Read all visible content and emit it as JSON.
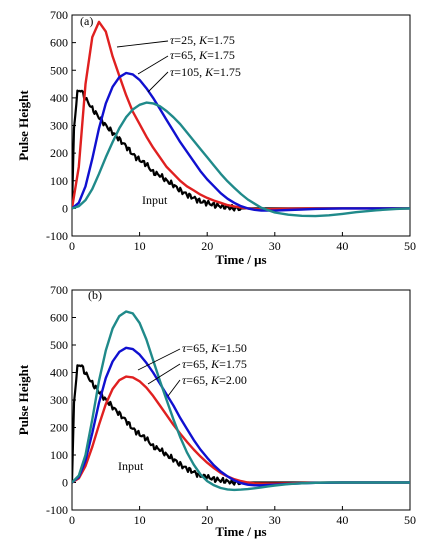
{
  "chart_data": [
    {
      "panel": "(a)",
      "type": "line",
      "xlabel": "Time / μs",
      "ylabel": "Pulse Height",
      "xlim": [
        0,
        50
      ],
      "ylim": [
        -100,
        700
      ],
      "xticks": [
        0,
        10,
        20,
        30,
        40,
        50
      ],
      "yticks": [
        -100,
        0,
        100,
        200,
        300,
        400,
        500,
        600,
        700
      ],
      "grid": false,
      "legend": "none (curves labeled by annotations)",
      "annotations": [
        {
          "tau": "τ",
          "tau_value": "=25, ",
          "k": "K",
          "k_value": "=1.75",
          "series": 1
        },
        {
          "tau": "τ",
          "tau_value": "=65, ",
          "k": "K",
          "k_value": "=1.75",
          "series": 2
        },
        {
          "tau": "τ",
          "tau_value": "=105, ",
          "k": "K",
          "k_value": "=1.75",
          "series": 3
        },
        {
          "text": "Input",
          "series": 0
        }
      ],
      "series": [
        {
          "name": "Input",
          "color": "#000000",
          "style": "noisy",
          "x": [
            0,
            0.3,
            0.8,
            1.3,
            1.8,
            2.5,
            3,
            4,
            5,
            6,
            7,
            8,
            9,
            10,
            11,
            12,
            13,
            14,
            15,
            16,
            17,
            18,
            19,
            20,
            21,
            22,
            23,
            24,
            25,
            27,
            30,
            35,
            40,
            45,
            50
          ],
          "y": [
            0,
            290,
            420,
            430,
            405,
            380,
            360,
            330,
            300,
            275,
            250,
            225,
            195,
            175,
            160,
            130,
            120,
            100,
            85,
            65,
            50,
            38,
            25,
            20,
            12,
            8,
            4,
            0,
            0,
            0,
            0,
            0,
            0,
            0,
            0
          ]
        },
        {
          "name": "τ=25, K=1.75",
          "color": "#e02020",
          "style": "smooth",
          "x": [
            0,
            1,
            2,
            3,
            4,
            5,
            6,
            7,
            8,
            9,
            10,
            11,
            12,
            13,
            14,
            15,
            16,
            17,
            18,
            19,
            20,
            21,
            22,
            23,
            24,
            25,
            26,
            27,
            28,
            30,
            32,
            35,
            40,
            45,
            50
          ],
          "y": [
            0,
            150,
            450,
            620,
            675,
            640,
            550,
            480,
            410,
            350,
            305,
            260,
            220,
            185,
            150,
            125,
            100,
            80,
            65,
            50,
            38,
            28,
            20,
            12,
            7,
            3,
            0,
            -2,
            -3,
            -2,
            -1,
            0,
            0,
            0,
            0
          ]
        },
        {
          "name": "τ=65, K=1.75",
          "color": "#1010d0",
          "style": "smooth",
          "x": [
            0,
            1,
            2,
            3,
            4,
            5,
            6,
            7,
            8,
            9,
            10,
            11,
            12,
            13,
            14,
            15,
            16,
            17,
            18,
            19,
            20,
            21,
            22,
            23,
            24,
            25,
            26,
            27,
            28,
            29,
            30,
            32,
            34,
            36,
            38,
            40,
            45,
            50
          ],
          "y": [
            0,
            20,
            80,
            180,
            290,
            380,
            440,
            475,
            490,
            485,
            465,
            435,
            400,
            360,
            320,
            280,
            240,
            205,
            170,
            135,
            105,
            80,
            55,
            35,
            20,
            8,
            0,
            -5,
            -8,
            -8,
            -8,
            -6,
            -4,
            -2,
            -1,
            0,
            0,
            0
          ]
        },
        {
          "name": "τ=105, K=1.75",
          "color": "#208a8a",
          "style": "smooth",
          "x": [
            0,
            1,
            2,
            3,
            4,
            5,
            6,
            7,
            8,
            9,
            10,
            11,
            12,
            13,
            14,
            15,
            16,
            17,
            18,
            19,
            20,
            21,
            22,
            23,
            24,
            25,
            26,
            28,
            30,
            32,
            34,
            36,
            38,
            40,
            42,
            45,
            48,
            50
          ],
          "y": [
            0,
            8,
            30,
            70,
            125,
            185,
            240,
            290,
            330,
            358,
            375,
            383,
            380,
            370,
            352,
            330,
            305,
            275,
            245,
            215,
            185,
            155,
            125,
            98,
            75,
            52,
            32,
            2,
            -15,
            -23,
            -27,
            -28,
            -25,
            -20,
            -14,
            -7,
            -2,
            0
          ]
        }
      ]
    },
    {
      "panel": "(b)",
      "type": "line",
      "xlabel": "Time / μs",
      "ylabel": "Pulse Height",
      "xlim": [
        0,
        50
      ],
      "ylim": [
        -100,
        700
      ],
      "xticks": [
        0,
        10,
        20,
        30,
        40,
        50
      ],
      "yticks": [
        -100,
        0,
        100,
        200,
        300,
        400,
        500,
        600,
        700
      ],
      "grid": false,
      "legend": "none (curves labeled by annotations)",
      "annotations": [
        {
          "tau": "τ",
          "tau_value": "=65, ",
          "k": "K",
          "k_value": "=1.50",
          "series": 3
        },
        {
          "tau": "τ",
          "tau_value": "=65, ",
          "k": "K",
          "k_value": "=1.75",
          "series": 2
        },
        {
          "tau": "τ",
          "tau_value": "=65, ",
          "k": "K",
          "k_value": "=2.00",
          "series": 1
        },
        {
          "text": "Input",
          "series": 0
        }
      ],
      "series": [
        {
          "name": "Input",
          "color": "#000000",
          "style": "noisy",
          "x": [
            0,
            0.3,
            0.8,
            1.3,
            1.8,
            2.5,
            3,
            4,
            5,
            6,
            7,
            8,
            9,
            10,
            11,
            12,
            13,
            14,
            15,
            16,
            17,
            18,
            19,
            20,
            21,
            22,
            23,
            24,
            25,
            27,
            30,
            35,
            40,
            45,
            50
          ],
          "y": [
            0,
            290,
            420,
            430,
            405,
            380,
            360,
            330,
            300,
            275,
            250,
            225,
            195,
            175,
            160,
            130,
            120,
            100,
            85,
            65,
            50,
            38,
            25,
            20,
            12,
            8,
            4,
            0,
            0,
            0,
            0,
            0,
            0,
            0,
            0
          ]
        },
        {
          "name": "τ=65, K=2.00",
          "color": "#e02020",
          "style": "smooth",
          "x": [
            0,
            1,
            2,
            3,
            4,
            5,
            6,
            7,
            8,
            9,
            10,
            11,
            12,
            13,
            14,
            15,
            16,
            17,
            18,
            19,
            20,
            21,
            22,
            23,
            24,
            25,
            26,
            27,
            28,
            30,
            32,
            35,
            40,
            45,
            50
          ],
          "y": [
            0,
            15,
            60,
            130,
            210,
            285,
            340,
            372,
            385,
            382,
            368,
            345,
            315,
            280,
            245,
            210,
            178,
            148,
            120,
            95,
            72,
            52,
            35,
            22,
            12,
            5,
            0,
            -3,
            -4,
            -4,
            -3,
            -1,
            0,
            0,
            0
          ]
        },
        {
          "name": "τ=65, K=1.75",
          "color": "#1010d0",
          "style": "smooth",
          "x": [
            0,
            1,
            2,
            3,
            4,
            5,
            6,
            7,
            8,
            9,
            10,
            11,
            12,
            13,
            14,
            15,
            16,
            17,
            18,
            19,
            20,
            21,
            22,
            23,
            24,
            25,
            26,
            27,
            28,
            29,
            30,
            32,
            34,
            36,
            40,
            45,
            50
          ],
          "y": [
            0,
            20,
            80,
            180,
            290,
            380,
            440,
            475,
            490,
            485,
            465,
            435,
            400,
            360,
            320,
            280,
            235,
            195,
            155,
            120,
            90,
            62,
            40,
            22,
            8,
            -2,
            -8,
            -10,
            -10,
            -9,
            -8,
            -5,
            -3,
            -1,
            0,
            0,
            0
          ]
        },
        {
          "name": "τ=65, K=1.50",
          "color": "#208a8a",
          "style": "smooth",
          "x": [
            0,
            1,
            2,
            3,
            4,
            5,
            6,
            7,
            8,
            9,
            10,
            11,
            12,
            13,
            14,
            15,
            16,
            17,
            18,
            19,
            20,
            21,
            22,
            23,
            24,
            25,
            26,
            27,
            28,
            29,
            30,
            32,
            34,
            36,
            38,
            40,
            45,
            50
          ],
          "y": [
            0,
            25,
            100,
            230,
            370,
            480,
            560,
            605,
            622,
            615,
            580,
            520,
            445,
            370,
            300,
            230,
            165,
            110,
            65,
            30,
            5,
            -10,
            -20,
            -25,
            -27,
            -26,
            -24,
            -21,
            -18,
            -14,
            -11,
            -6,
            -3,
            -1,
            0,
            0,
            0,
            0
          ]
        }
      ]
    }
  ]
}
